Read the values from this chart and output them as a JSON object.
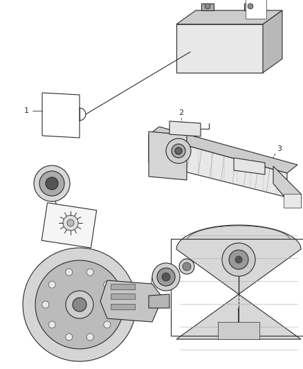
{
  "background_color": "#ffffff",
  "line_color": "#2a2a2a",
  "label_color": "#222222",
  "figsize": [
    4.38,
    5.33
  ],
  "dpi": 100,
  "lw_main": 0.8,
  "lw_thin": 0.5,
  "lw_thick": 1.2,
  "gray_light": "#e8e8e8",
  "gray_mid": "#cccccc",
  "gray_dark": "#aaaaaa",
  "white": "#ffffff"
}
